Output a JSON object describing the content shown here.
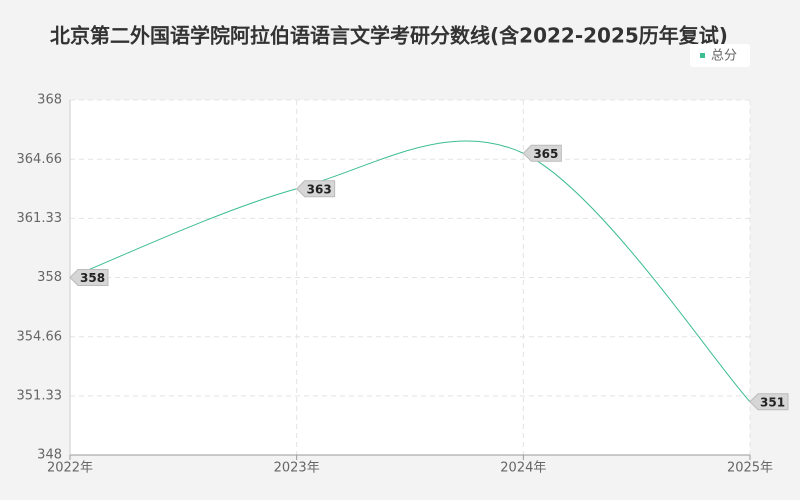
{
  "chart_data": {
    "type": "line",
    "title": "北京第二外国语学院阿拉伯语语言文学考研分数线(含2022-2025历年复试)",
    "categories": [
      "2022年",
      "2023年",
      "2024年",
      "2025年"
    ],
    "series": [
      {
        "name": "总分",
        "color": "#3dbd93",
        "values": [
          358,
          363,
          365,
          351
        ]
      }
    ],
    "ylim": [
      348,
      368
    ],
    "yticks": [
      348,
      351.33,
      354.66,
      358,
      361.33,
      364.66,
      368
    ],
    "grid": true,
    "legend": "top-right"
  }
}
